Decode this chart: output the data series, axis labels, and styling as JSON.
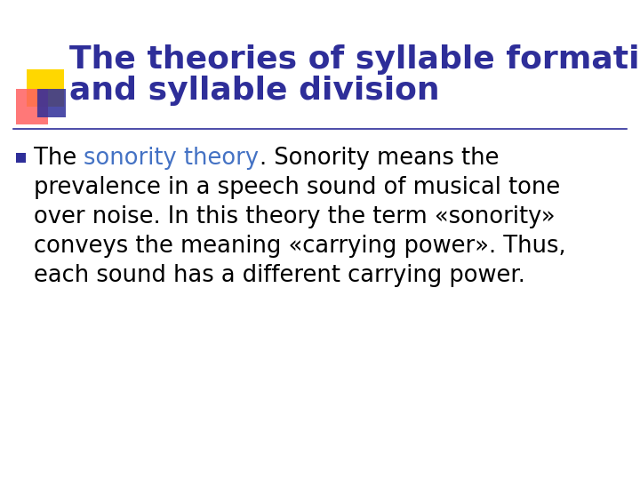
{
  "title_line1": "The theories of syllable formation",
  "title_line2": "and syllable division",
  "title_color": "#2E2E99",
  "title_fontsize": 26,
  "body_fontsize": 18.5,
  "body_color": "#000000",
  "highlight_color": "#4472C4",
  "background_color": "#FFFFFF",
  "separator_color": "#2E2E99",
  "decoration_yellow": "#FFD700",
  "decoration_red": "#FF6060",
  "decoration_blue": "#2E2E99",
  "bullet_color": "#2E2E99",
  "line1_parts": [
    [
      "The ",
      "#000000"
    ],
    [
      "sonority theory",
      "#4472C4"
    ],
    [
      ". Sonority means the",
      "#000000"
    ]
  ],
  "body_plain_lines": [
    "prevalence in a speech sound of musical tone",
    "over noise. In this theory the term «sonority»",
    "conveys the meaning «carrying power». Thus,",
    "each sound has a different carrying power."
  ]
}
